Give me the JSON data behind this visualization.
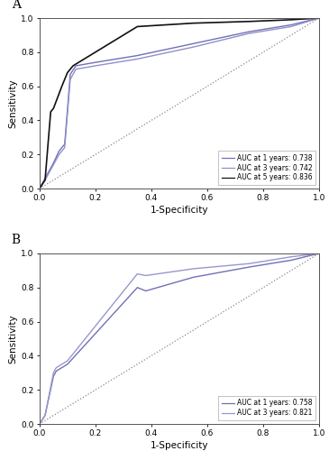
{
  "panel_A": {
    "label": "A",
    "curves": [
      {
        "name": "AUC at 1 years: 0.738",
        "color": "#7070b8",
        "linewidth": 1.0,
        "points": [
          [
            0,
            0
          ],
          [
            0.02,
            0.06
          ],
          [
            0.05,
            0.15
          ],
          [
            0.07,
            0.22
          ],
          [
            0.09,
            0.26
          ],
          [
            0.1,
            0.46
          ],
          [
            0.11,
            0.67
          ],
          [
            0.13,
            0.72
          ],
          [
            0.2,
            0.74
          ],
          [
            0.35,
            0.78
          ],
          [
            0.55,
            0.85
          ],
          [
            0.75,
            0.92
          ],
          [
            0.9,
            0.96
          ],
          [
            1.0,
            1.0
          ]
        ]
      },
      {
        "name": "AUC at 3 years: 0.742",
        "color": "#9090c8",
        "linewidth": 1.0,
        "points": [
          [
            0,
            0
          ],
          [
            0.02,
            0.05
          ],
          [
            0.05,
            0.14
          ],
          [
            0.07,
            0.2
          ],
          [
            0.09,
            0.24
          ],
          [
            0.1,
            0.44
          ],
          [
            0.11,
            0.64
          ],
          [
            0.13,
            0.7
          ],
          [
            0.2,
            0.72
          ],
          [
            0.35,
            0.76
          ],
          [
            0.55,
            0.83
          ],
          [
            0.75,
            0.91
          ],
          [
            0.9,
            0.95
          ],
          [
            1.0,
            1.0
          ]
        ]
      },
      {
        "name": "AUC at 5 years: 0.836",
        "color": "#111111",
        "linewidth": 1.2,
        "points": [
          [
            0,
            0
          ],
          [
            0.02,
            0.05
          ],
          [
            0.04,
            0.45
          ],
          [
            0.05,
            0.47
          ],
          [
            0.08,
            0.6
          ],
          [
            0.1,
            0.68
          ],
          [
            0.12,
            0.72
          ],
          [
            0.35,
            0.95
          ],
          [
            0.55,
            0.97
          ],
          [
            0.75,
            0.98
          ],
          [
            0.9,
            0.99
          ],
          [
            1.0,
            1.0
          ]
        ]
      }
    ],
    "xlabel": "1-Specificity",
    "ylabel": "Sensitivity",
    "xlim": [
      0.0,
      1.0
    ],
    "ylim": [
      0.0,
      1.0
    ],
    "xticks": [
      0.0,
      0.2,
      0.4,
      0.6,
      0.8,
      1.0
    ],
    "yticks": [
      0.0,
      0.2,
      0.4,
      0.6,
      0.8,
      1.0
    ]
  },
  "panel_B": {
    "label": "B",
    "curves": [
      {
        "name": "AUC at 1 years: 0.758",
        "color": "#7070b8",
        "linewidth": 1.0,
        "points": [
          [
            0,
            0
          ],
          [
            0.02,
            0.05
          ],
          [
            0.05,
            0.28
          ],
          [
            0.06,
            0.31
          ],
          [
            0.08,
            0.33
          ],
          [
            0.1,
            0.35
          ],
          [
            0.35,
            0.8
          ],
          [
            0.38,
            0.78
          ],
          [
            0.55,
            0.86
          ],
          [
            0.75,
            0.92
          ],
          [
            0.9,
            0.96
          ],
          [
            1.0,
            1.0
          ]
        ]
      },
      {
        "name": "AUC at 3 years: 0.821",
        "color": "#9898cc",
        "linewidth": 1.0,
        "points": [
          [
            0,
            0
          ],
          [
            0.02,
            0.05
          ],
          [
            0.05,
            0.3
          ],
          [
            0.06,
            0.33
          ],
          [
            0.08,
            0.35
          ],
          [
            0.1,
            0.37
          ],
          [
            0.35,
            0.88
          ],
          [
            0.38,
            0.87
          ],
          [
            0.55,
            0.91
          ],
          [
            0.75,
            0.94
          ],
          [
            0.9,
            0.98
          ],
          [
            1.0,
            1.0
          ]
        ]
      }
    ],
    "xlabel": "1-Specificity",
    "ylabel": "Sensitivity",
    "xlim": [
      0.0,
      1.0
    ],
    "ylim": [
      0.0,
      1.0
    ],
    "xticks": [
      0.0,
      0.2,
      0.4,
      0.6,
      0.8,
      1.0
    ],
    "yticks": [
      0.0,
      0.2,
      0.4,
      0.6,
      0.8,
      1.0
    ]
  },
  "background_color": "#ffffff",
  "diag_color": "#888888",
  "label_fontsize": 7.5,
  "tick_fontsize": 6.5,
  "legend_fontsize": 5.5,
  "panel_label_fontsize": 10,
  "spine_color": "#555555",
  "spine_linewidth": 0.7
}
